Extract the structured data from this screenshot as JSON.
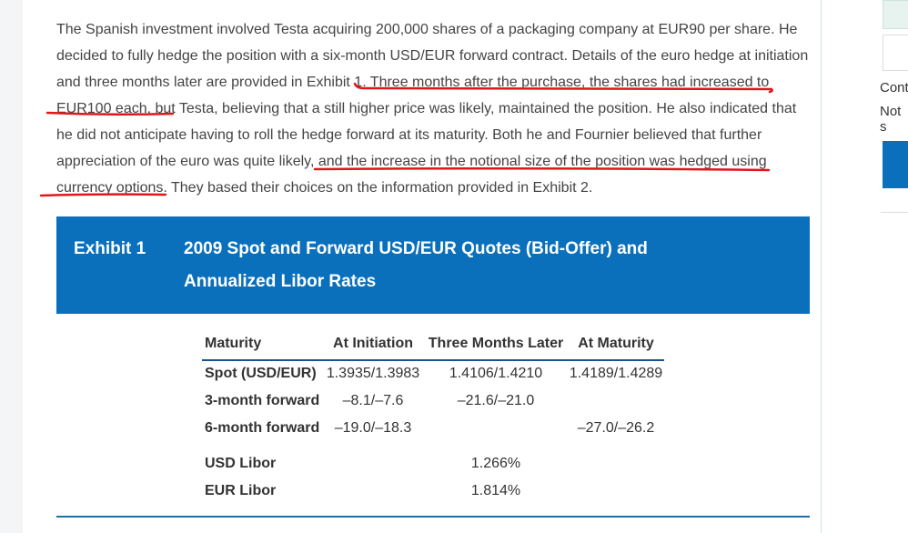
{
  "paragraph": "The Spanish investment involved Testa acquiring 200,000 shares of a packaging company at EUR90 per share. He decided to fully hedge the position with a six-month USD/EUR forward contract. Details of the euro hedge at initiation and three months later are provided in Exhibit 1. Three months after the purchase, the shares had increased to EUR100 each, but Testa, believing that a still higher price was likely, maintained the position. He also indicated that he did not anticipate having to roll the hedge forward at its maturity. Both he and Fournier believed that further appreciation of the euro was quite likely, and the increase in the notional size of the position was hedged using currency options. They based their choices on the information provided in Exhibit 2.",
  "exhibit": {
    "label": "Exhibit 1",
    "title_lines": [
      "2009 Spot and Forward USD/EUR Quotes (Bid-Offer) and",
      "Annualized Libor Rates"
    ]
  },
  "table": {
    "headers": [
      "Maturity",
      "At Initiation",
      "Three Months Later",
      "At Maturity"
    ],
    "rows": [
      [
        "Spot (USD/EUR)",
        "1.3935/1.3983",
        "1.4106/1.4210",
        "1.4189/1.4289"
      ],
      [
        "3-month forward",
        "–8.1/–7.6",
        "–21.6/–21.0",
        null
      ],
      [
        "6-month forward",
        "–19.0/–18.3",
        null,
        "–27.0/–26.2"
      ]
    ],
    "rates": [
      {
        "label": "USD Libor",
        "value": "1.266%"
      },
      {
        "label": "EUR Libor",
        "value": "1.814%"
      }
    ]
  },
  "sidebar": {
    "items": [
      "Cont",
      "Not s"
    ]
  }
}
